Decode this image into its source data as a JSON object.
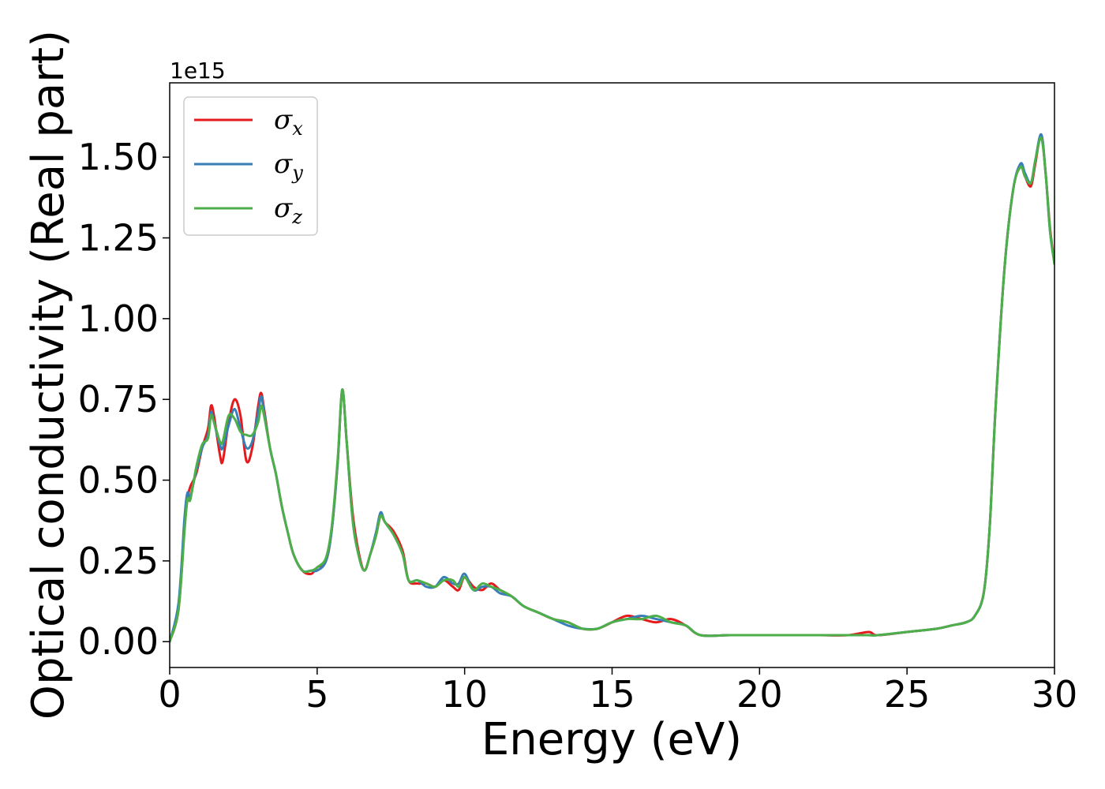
{
  "chart_data": {
    "type": "line",
    "title": "",
    "xlabel": "Energy (eV)",
    "ylabel": "Optical conductivity (Real part)",
    "y_offset_text": "1e15",
    "xlim": [
      0,
      30
    ],
    "ylim": [
      -0.08,
      1.73
    ],
    "y_scale_factor": 1000000000000000.0,
    "xticks": [
      0,
      5,
      10,
      15,
      20,
      25,
      30
    ],
    "xtick_labels": [
      "0",
      "5",
      "10",
      "15",
      "20",
      "25",
      "30"
    ],
    "yticks": [
      0.0,
      0.25,
      0.5,
      0.75,
      1.0,
      1.25,
      1.5
    ],
    "ytick_labels": [
      "0.00",
      "0.25",
      "0.50",
      "0.75",
      "1.00",
      "1.25",
      "1.50"
    ],
    "grid": false,
    "legend_position": "top-left",
    "series": [
      {
        "name": "σ",
        "subscript": "x",
        "color": "#e41a1c",
        "x": [
          0,
          0.3,
          0.5,
          0.6,
          0.7,
          0.9,
          1.1,
          1.3,
          1.4,
          1.5,
          1.7,
          1.8,
          2.0,
          2.2,
          2.4,
          2.6,
          2.8,
          3.0,
          3.1,
          3.2,
          3.4,
          3.6,
          3.8,
          4.0,
          4.2,
          4.5,
          4.8,
          5.0,
          5.3,
          5.5,
          5.7,
          5.85,
          6.0,
          6.2,
          6.4,
          6.6,
          6.8,
          7.0,
          7.15,
          7.3,
          7.6,
          7.9,
          8.1,
          8.4,
          8.7,
          9.0,
          9.3,
          9.6,
          9.8,
          10.0,
          10.3,
          10.6,
          10.9,
          11.2,
          11.6,
          12.0,
          12.5,
          13.0,
          13.5,
          14.0,
          14.5,
          15.0,
          15.5,
          16.0,
          16.5,
          17.0,
          17.5,
          18.0,
          19.0,
          20.0,
          21.0,
          22.0,
          23.0,
          23.7,
          24.0,
          25.0,
          26.0,
          26.5,
          27.0,
          27.3,
          27.6,
          27.8,
          28.0,
          28.3,
          28.6,
          28.85,
          29.0,
          29.2,
          29.35,
          29.55,
          29.7,
          29.85,
          30.0
        ],
        "values": [
          0.0,
          0.1,
          0.35,
          0.44,
          0.48,
          0.52,
          0.6,
          0.66,
          0.73,
          0.7,
          0.58,
          0.56,
          0.68,
          0.75,
          0.7,
          0.56,
          0.6,
          0.73,
          0.77,
          0.72,
          0.6,
          0.52,
          0.42,
          0.34,
          0.27,
          0.22,
          0.21,
          0.23,
          0.25,
          0.35,
          0.56,
          0.78,
          0.62,
          0.4,
          0.28,
          0.22,
          0.27,
          0.33,
          0.39,
          0.37,
          0.34,
          0.28,
          0.19,
          0.18,
          0.18,
          0.17,
          0.19,
          0.17,
          0.16,
          0.2,
          0.17,
          0.16,
          0.18,
          0.16,
          0.14,
          0.11,
          0.09,
          0.07,
          0.06,
          0.04,
          0.04,
          0.06,
          0.08,
          0.07,
          0.06,
          0.07,
          0.05,
          0.02,
          0.02,
          0.02,
          0.02,
          0.02,
          0.02,
          0.03,
          0.02,
          0.03,
          0.04,
          0.05,
          0.06,
          0.08,
          0.15,
          0.35,
          0.72,
          1.15,
          1.4,
          1.47,
          1.44,
          1.41,
          1.48,
          1.57,
          1.45,
          1.28,
          1.17
        ]
      },
      {
        "name": "σ",
        "subscript": "y",
        "color": "#377eb8",
        "x": [
          0,
          0.3,
          0.5,
          0.6,
          0.7,
          0.9,
          1.1,
          1.3,
          1.4,
          1.5,
          1.7,
          1.8,
          2.0,
          2.2,
          2.4,
          2.6,
          2.8,
          3.0,
          3.1,
          3.2,
          3.4,
          3.6,
          3.8,
          4.0,
          4.2,
          4.5,
          4.8,
          5.0,
          5.3,
          5.5,
          5.7,
          5.85,
          6.0,
          6.2,
          6.4,
          6.6,
          6.8,
          7.0,
          7.15,
          7.3,
          7.6,
          7.9,
          8.1,
          8.4,
          8.7,
          9.0,
          9.3,
          9.6,
          9.8,
          10.0,
          10.3,
          10.6,
          10.9,
          11.2,
          11.6,
          12.0,
          12.5,
          13.0,
          13.5,
          14.0,
          14.5,
          15.0,
          15.5,
          16.0,
          16.5,
          17.0,
          17.5,
          18.0,
          19.0,
          20.0,
          21.0,
          22.0,
          23.0,
          23.7,
          24.0,
          25.0,
          26.0,
          26.5,
          27.0,
          27.3,
          27.6,
          27.8,
          28.0,
          28.3,
          28.6,
          28.85,
          29.0,
          29.2,
          29.35,
          29.55,
          29.7,
          29.85,
          30.0
        ],
        "values": [
          0.0,
          0.12,
          0.38,
          0.46,
          0.45,
          0.53,
          0.6,
          0.64,
          0.71,
          0.68,
          0.61,
          0.6,
          0.67,
          0.72,
          0.66,
          0.6,
          0.62,
          0.71,
          0.76,
          0.71,
          0.6,
          0.52,
          0.42,
          0.34,
          0.27,
          0.22,
          0.22,
          0.22,
          0.25,
          0.35,
          0.56,
          0.78,
          0.62,
          0.38,
          0.27,
          0.22,
          0.27,
          0.34,
          0.4,
          0.37,
          0.33,
          0.27,
          0.19,
          0.19,
          0.17,
          0.17,
          0.2,
          0.18,
          0.18,
          0.21,
          0.16,
          0.17,
          0.17,
          0.15,
          0.14,
          0.11,
          0.09,
          0.07,
          0.05,
          0.04,
          0.04,
          0.06,
          0.07,
          0.08,
          0.07,
          0.06,
          0.05,
          0.02,
          0.02,
          0.02,
          0.02,
          0.02,
          0.02,
          0.02,
          0.02,
          0.03,
          0.04,
          0.05,
          0.06,
          0.08,
          0.15,
          0.35,
          0.72,
          1.15,
          1.4,
          1.48,
          1.45,
          1.42,
          1.49,
          1.57,
          1.45,
          1.27,
          1.17
        ]
      },
      {
        "name": "σ",
        "subscript": "z",
        "color": "#4daf4a",
        "x": [
          0,
          0.3,
          0.5,
          0.6,
          0.7,
          0.9,
          1.1,
          1.3,
          1.4,
          1.5,
          1.7,
          1.8,
          2.0,
          2.2,
          2.4,
          2.6,
          2.8,
          3.0,
          3.1,
          3.2,
          3.4,
          3.6,
          3.8,
          4.0,
          4.2,
          4.5,
          4.8,
          5.0,
          5.3,
          5.5,
          5.7,
          5.85,
          6.0,
          6.2,
          6.4,
          6.6,
          6.8,
          7.0,
          7.15,
          7.3,
          7.6,
          7.9,
          8.1,
          8.4,
          8.7,
          9.0,
          9.3,
          9.6,
          9.8,
          10.0,
          10.3,
          10.6,
          10.9,
          11.2,
          11.6,
          12.0,
          12.5,
          13.0,
          13.5,
          14.0,
          14.5,
          15.0,
          15.5,
          16.0,
          16.5,
          17.0,
          17.5,
          18.0,
          19.0,
          20.0,
          21.0,
          22.0,
          23.0,
          23.7,
          24.0,
          25.0,
          26.0,
          26.5,
          27.0,
          27.3,
          27.6,
          27.8,
          28.0,
          28.3,
          28.6,
          28.85,
          29.0,
          29.2,
          29.35,
          29.55,
          29.7,
          29.85,
          30.0
        ],
        "values": [
          0.0,
          0.1,
          0.34,
          0.44,
          0.44,
          0.54,
          0.61,
          0.63,
          0.7,
          0.68,
          0.62,
          0.62,
          0.7,
          0.69,
          0.65,
          0.64,
          0.64,
          0.68,
          0.73,
          0.7,
          0.6,
          0.52,
          0.42,
          0.34,
          0.27,
          0.22,
          0.22,
          0.23,
          0.26,
          0.36,
          0.57,
          0.78,
          0.62,
          0.38,
          0.27,
          0.22,
          0.27,
          0.33,
          0.39,
          0.37,
          0.33,
          0.27,
          0.19,
          0.19,
          0.18,
          0.17,
          0.19,
          0.19,
          0.17,
          0.2,
          0.16,
          0.18,
          0.17,
          0.16,
          0.14,
          0.11,
          0.09,
          0.07,
          0.06,
          0.04,
          0.04,
          0.06,
          0.07,
          0.07,
          0.08,
          0.06,
          0.05,
          0.02,
          0.02,
          0.02,
          0.02,
          0.02,
          0.02,
          0.02,
          0.02,
          0.03,
          0.04,
          0.05,
          0.06,
          0.08,
          0.15,
          0.35,
          0.72,
          1.15,
          1.4,
          1.47,
          1.44,
          1.42,
          1.49,
          1.56,
          1.45,
          1.27,
          1.17
        ]
      }
    ]
  }
}
